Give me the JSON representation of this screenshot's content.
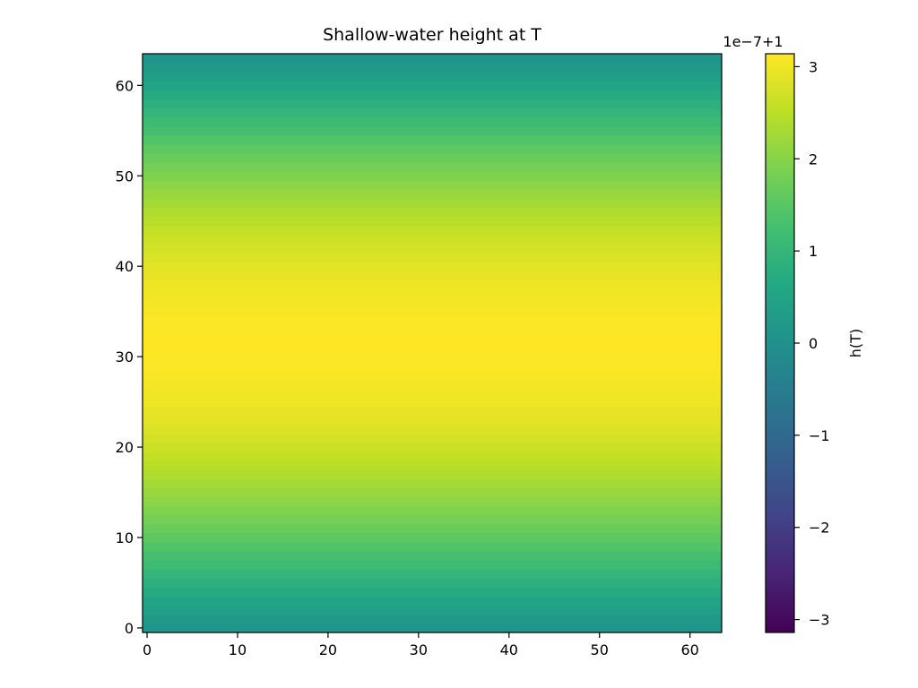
{
  "chart_data": {
    "type": "heatmap",
    "title": "Shallow-water height at T",
    "xlabel": "",
    "ylabel": "",
    "grid": false,
    "nx": 64,
    "ny": 64,
    "xlim": [
      -0.5,
      63.5
    ],
    "ylim": [
      -0.5,
      63.5
    ],
    "x_ticks": [
      0,
      10,
      20,
      30,
      40,
      50,
      60
    ],
    "y_ticks": [
      0,
      10,
      20,
      30,
      40,
      50,
      60
    ],
    "x_tick_labels": [
      "0",
      "10",
      "20",
      "30",
      "40",
      "50",
      "60"
    ],
    "y_tick_labels": [
      "0",
      "10",
      "20",
      "30",
      "40",
      "50",
      "60"
    ],
    "field": "h = 1 + A * sin(pi * (row + 0.5) / 64), varies along y only",
    "offset": 1,
    "scale": 1e-07,
    "amplitude_scaled": 3.14,
    "colormap": "viridis",
    "colorbar": {
      "label": "h(T)",
      "offset_text": "1e−7+1",
      "vmin_scaled": -3.14,
      "vmax_scaled": 3.14,
      "ticks": [
        -3,
        -2,
        -1,
        0,
        1,
        2,
        3
      ],
      "tick_labels": [
        "−3",
        "−2",
        "−1",
        "0",
        "1",
        "2",
        "3"
      ]
    }
  }
}
